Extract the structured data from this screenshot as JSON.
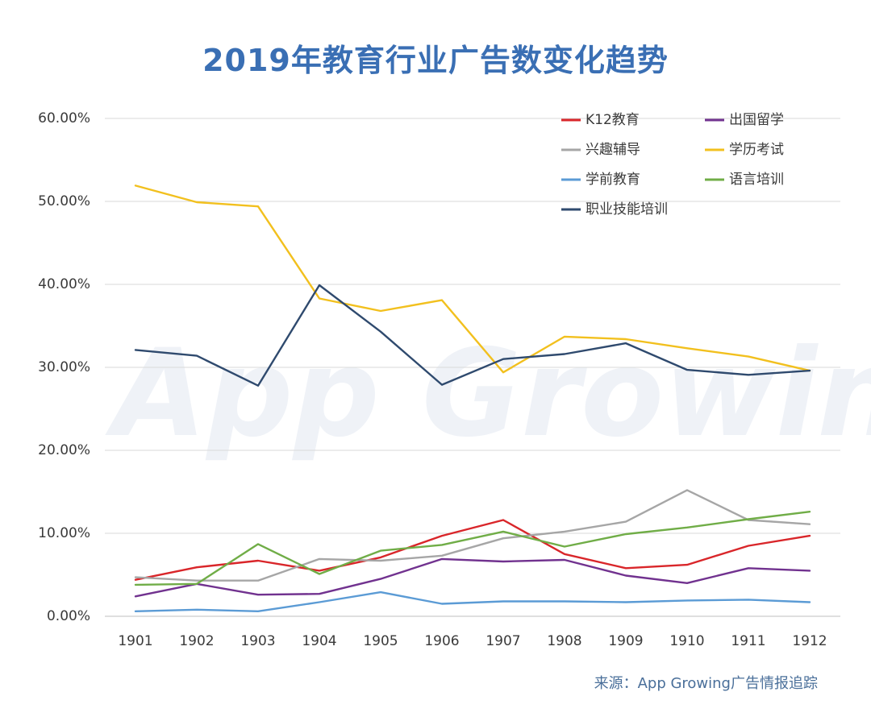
{
  "chart_data": {
    "type": "line",
    "title": "2019年教育行业广告数变化趋势",
    "xlabel": "",
    "ylabel": "",
    "categories": [
      "1901",
      "1902",
      "1903",
      "1904",
      "1905",
      "1906",
      "1907",
      "1908",
      "1909",
      "1910",
      "1911",
      "1912"
    ],
    "y_ticks": [
      "0.00%",
      "10.00%",
      "20.00%",
      "30.00%",
      "40.00%",
      "50.00%",
      "60.00%"
    ],
    "ylim": [
      0,
      60
    ],
    "grid": true,
    "legend_position": "top-right",
    "series": [
      {
        "name": "K12教育",
        "color": "#d9262a",
        "values": [
          4.4,
          5.9,
          6.7,
          5.5,
          7.1,
          9.7,
          11.6,
          7.5,
          5.8,
          6.2,
          8.5,
          9.7
        ]
      },
      {
        "name": "出国留学",
        "color": "#71328f",
        "values": [
          2.4,
          3.9,
          2.6,
          2.7,
          4.5,
          6.9,
          6.6,
          6.8,
          4.9,
          4.0,
          5.8,
          5.5
        ]
      },
      {
        "name": "兴趣辅导",
        "color": "#a6a6a6",
        "values": [
          4.7,
          4.3,
          4.3,
          6.9,
          6.7,
          7.3,
          9.4,
          10.2,
          11.4,
          15.2,
          11.6,
          11.1
        ]
      },
      {
        "name": "学历考试",
        "color": "#f2c01e",
        "values": [
          51.9,
          49.9,
          49.4,
          38.3,
          36.8,
          38.1,
          29.4,
          33.7,
          33.4,
          32.3,
          31.3,
          29.6
        ]
      },
      {
        "name": "学前教育",
        "color": "#5b9bd5",
        "values": [
          0.6,
          0.8,
          0.6,
          1.7,
          2.9,
          1.5,
          1.8,
          1.8,
          1.7,
          1.9,
          2.0,
          1.7
        ]
      },
      {
        "name": "语言培训",
        "color": "#70ad47",
        "values": [
          3.8,
          3.9,
          8.7,
          5.1,
          7.9,
          8.6,
          10.2,
          8.4,
          9.9,
          10.7,
          11.7,
          12.6
        ]
      },
      {
        "name": "职业技能培训",
        "color": "#2f4a6e",
        "values": [
          32.1,
          31.4,
          27.8,
          39.9,
          34.3,
          27.9,
          31.0,
          31.6,
          32.9,
          29.7,
          29.1,
          29.6
        ]
      }
    ]
  },
  "watermark": "App Growing",
  "source_note": "来源：App Growing广告情报追踪"
}
